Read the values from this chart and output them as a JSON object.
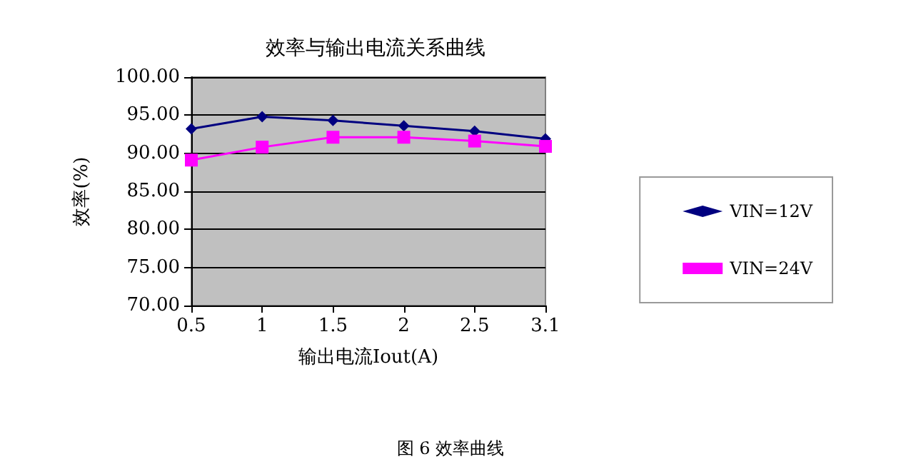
{
  "chart_data": {
    "type": "line",
    "title": "效率与输出电流关系曲线",
    "xlabel": "输出电流Iout(A)",
    "ylabel": "效率(%)",
    "categories": [
      "0.5",
      "1",
      "1.5",
      "2",
      "2.5",
      "3.1"
    ],
    "series": [
      {
        "name": "VIN=12V",
        "color": "#000080",
        "marker": "diamond",
        "values": [
          93.2,
          94.8,
          94.3,
          93.6,
          92.9,
          91.9
        ]
      },
      {
        "name": "VIN=24V",
        "color": "#ff00ff",
        "marker": "square",
        "values": [
          89.1,
          90.8,
          92.1,
          92.1,
          91.6,
          90.9
        ]
      }
    ],
    "ylim": [
      70,
      100
    ],
    "yticks": [
      {
        "value": 70,
        "label": "70.00"
      },
      {
        "value": 75,
        "label": "75.00"
      },
      {
        "value": 80,
        "label": "80.00"
      },
      {
        "value": 85,
        "label": "85.00"
      },
      {
        "value": 90,
        "label": "90.00"
      },
      {
        "value": 95,
        "label": "95.00"
      },
      {
        "value": 100,
        "label": "100.00"
      }
    ],
    "grid": "y",
    "legend": "right",
    "line_style": "solid",
    "annotations": [
      "图 6 效率曲线"
    ]
  }
}
